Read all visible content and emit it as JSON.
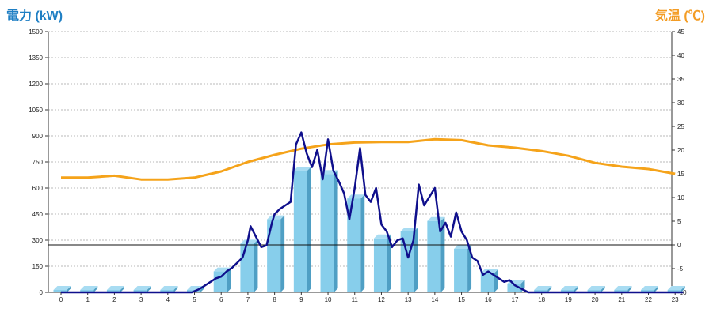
{
  "chart_data": {
    "type": "bar+line",
    "left_axis_title": "電力 (kW)",
    "right_axis_title": "気温 (℃)",
    "left_ylim": [
      0,
      1500
    ],
    "left_ticks": [
      0,
      150,
      300,
      450,
      600,
      750,
      900,
      1050,
      1200,
      1350,
      1500
    ],
    "right_ylim": [
      -10,
      45
    ],
    "right_ticks": [
      -10,
      -5,
      0,
      5,
      10,
      15,
      20,
      25,
      30,
      35,
      40,
      45
    ],
    "categories": [
      "0",
      "1",
      "2",
      "3",
      "4",
      "5",
      "6",
      "7",
      "8",
      "9",
      "10",
      "11",
      "12",
      "13",
      "14",
      "15",
      "16",
      "17",
      "18",
      "19",
      "20",
      "21",
      "22",
      "23"
    ],
    "bars": {
      "name": "",
      "values": [
        0,
        0,
        0,
        0,
        0,
        10,
        120,
        280,
        420,
        700,
        680,
        540,
        310,
        350,
        410,
        250,
        110,
        50,
        0,
        0,
        0,
        0,
        0,
        0
      ],
      "color_front": "#87ceeb",
      "color_side": "#4f9fc4",
      "color_top": "#a8dcf2"
    },
    "power_line": {
      "name": "",
      "color": "#0f0f8c",
      "x": [
        0,
        0.5,
        1,
        1.5,
        2,
        2.5,
        3,
        3.5,
        4,
        4.5,
        4.9,
        5.2,
        5.5,
        5.8,
        6.0,
        6.2,
        6.4,
        6.6,
        6.8,
        7.0,
        7.1,
        7.3,
        7.5,
        7.7,
        7.9,
        8.0,
        8.2,
        8.4,
        8.6,
        8.8,
        9.0,
        9.2,
        9.4,
        9.6,
        9.8,
        10.0,
        10.2,
        10.4,
        10.6,
        10.8,
        11.0,
        11.2,
        11.4,
        11.6,
        11.8,
        12.0,
        12.2,
        12.4,
        12.6,
        12.8,
        13.0,
        13.2,
        13.4,
        13.6,
        13.8,
        14.0,
        14.2,
        14.4,
        14.6,
        14.8,
        15.0,
        15.2,
        15.4,
        15.6,
        15.8,
        16.0,
        16.2,
        16.4,
        16.6,
        16.8,
        17.0,
        17.5,
        18,
        19,
        20,
        21,
        22,
        23.3
      ],
      "y": [
        0,
        0,
        0,
        0,
        0,
        0,
        0,
        0,
        0,
        0,
        0,
        20,
        50,
        80,
        90,
        120,
        140,
        170,
        200,
        300,
        380,
        320,
        260,
        270,
        400,
        450,
        480,
        500,
        520,
        850,
        920,
        800,
        720,
        820,
        650,
        880,
        700,
        640,
        570,
        420,
        600,
        830,
        560,
        520,
        600,
        390,
        350,
        260,
        300,
        310,
        200,
        300,
        620,
        500,
        550,
        600,
        350,
        400,
        320,
        460,
        350,
        300,
        200,
        180,
        100,
        120,
        100,
        80,
        60,
        70,
        40,
        0,
        0,
        0,
        0,
        0,
        0,
        0
      ]
    },
    "temperature_line": {
      "name": "",
      "color": "#f5a31a",
      "x": [
        0,
        1,
        2,
        3,
        4,
        5,
        6,
        7,
        8,
        9,
        10,
        11,
        12,
        13,
        14,
        15,
        16,
        17,
        18,
        19,
        20,
        21,
        22,
        23
      ],
      "y": [
        14.2,
        14.2,
        14.6,
        13.8,
        13.8,
        14.2,
        15.5,
        17.5,
        19.0,
        20.3,
        21.2,
        21.6,
        21.7,
        21.7,
        22.3,
        22.1,
        21.0,
        20.5,
        19.8,
        18.8,
        17.3,
        16.5,
        16.0,
        15.0
      ]
    },
    "grid": true,
    "zero_temperature_reference_line": true
  }
}
